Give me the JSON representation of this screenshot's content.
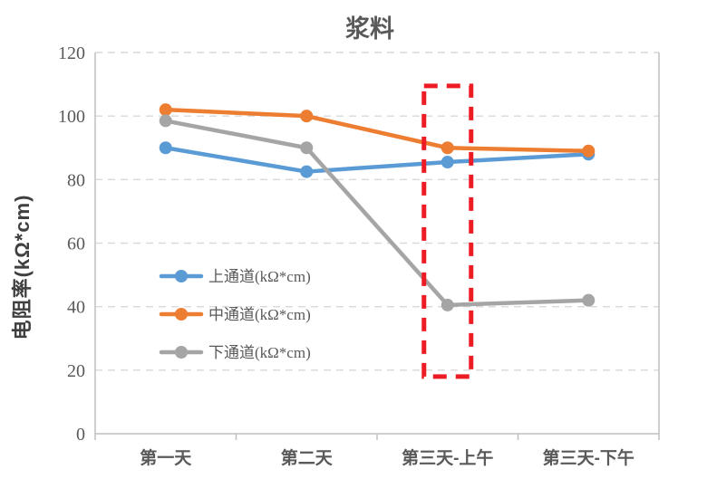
{
  "chart_data": {
    "type": "line",
    "title": "浆料",
    "xlabel": "",
    "ylabel": "电阻率(kΩ*cm)",
    "categories": [
      "第一天",
      "第二天",
      "第三天-上午",
      "第三天-下午"
    ],
    "series": [
      {
        "name": "上通道(kΩ*cm)",
        "color": "#5B9BD5",
        "values": [
          90,
          82.5,
          85.5,
          88
        ]
      },
      {
        "name": "中通道(kΩ*cm)",
        "color": "#ED7D31",
        "values": [
          102,
          100,
          90,
          89
        ]
      },
      {
        "name": "下通道(kΩ*cm)",
        "color": "#A5A5A5",
        "values": [
          98.5,
          90,
          40.5,
          42
        ]
      }
    ],
    "ylim": [
      0,
      120
    ],
    "ytick_step": 20,
    "ytick_labels": [
      "0",
      "20",
      "40",
      "60",
      "80",
      "100",
      "120"
    ],
    "grid": "horizontal-dashed",
    "legend_position": "inside-left-middle",
    "annotation": {
      "type": "dashed-rect-highlight",
      "color": "#ED1C24",
      "category_index": 2,
      "y_min": 18,
      "y_max": 109.5
    }
  },
  "colors": {
    "background": "#ffffff",
    "gridline": "#d9d9d9",
    "axis": "#bfbfbf",
    "tick_text": "#595959",
    "title_text": "#595959"
  }
}
